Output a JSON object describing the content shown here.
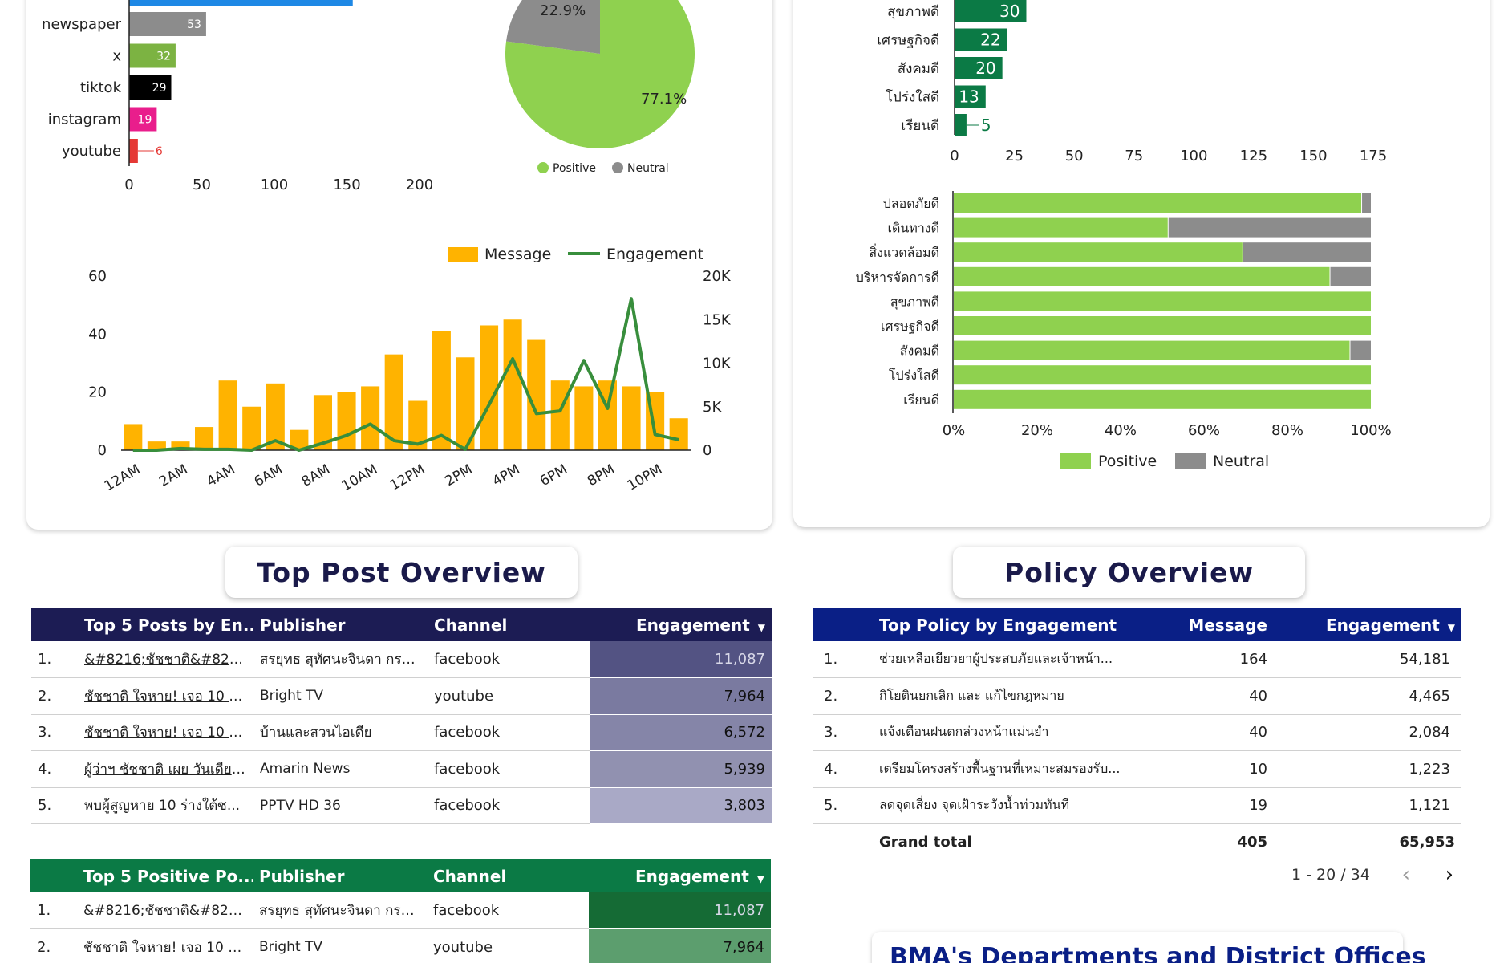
{
  "channel_chart": {
    "type": "bar",
    "categories": [
      "newspaper",
      "x",
      "tiktok",
      "instagram",
      "youtube"
    ],
    "values": [
      53,
      32,
      29,
      19,
      6
    ],
    "bar_colors": [
      "#8c8c8c",
      "#7cb342",
      "#000000",
      "#e91e8c",
      "#e53935"
    ],
    "value_label_colors": [
      "#ffffff",
      "#ffffff",
      "#ffffff",
      "#ffffff",
      "#e53935"
    ],
    "top_partial_bar_color": "#1e88e5",
    "xticks": [
      0,
      50,
      100,
      150,
      200
    ],
    "xlim": [
      0,
      200
    ]
  },
  "sentiment_pie": {
    "type": "pie",
    "slices": [
      {
        "name": "Positive",
        "value": 77.1,
        "label": "77.1%",
        "color": "#8fd14f"
      },
      {
        "name": "Neutral",
        "value": 22.9,
        "label": "22.9%",
        "color": "#8c8c8c"
      }
    ]
  },
  "hourly_chart": {
    "type": "bar",
    "legend": {
      "bar": "Message",
      "line": "Engagement"
    },
    "bar_color": "#ffb300",
    "line_color": "#388e3c",
    "messages": [
      9,
      3,
      3,
      8,
      24,
      15,
      23,
      7,
      19,
      20,
      22,
      33,
      17,
      41,
      32,
      43,
      45,
      38,
      24,
      22,
      24,
      22,
      20,
      11
    ],
    "engagement": [
      0,
      0,
      200,
      100,
      100,
      0,
      1100,
      0,
      800,
      1700,
      3000,
      1100,
      700,
      1700,
      100,
      5200,
      10500,
      4200,
      4500,
      10300,
      4800,
      17400,
      1800,
      1200
    ],
    "x_tick_labels": [
      "12AM",
      "2AM",
      "4AM",
      "6AM",
      "8AM",
      "10AM",
      "12PM",
      "2PM",
      "4PM",
      "6PM",
      "8PM",
      "10PM"
    ],
    "left_ticks": [
      "0",
      "20",
      "40",
      "60"
    ],
    "right_ticks": [
      "0",
      "5K",
      "10K",
      "15K",
      "20K"
    ],
    "left_max": 60,
    "right_max": 20000
  },
  "policy_bar_chart": {
    "type": "bar",
    "categories": [
      "สุขภาพดี",
      "เศรษฐกิจดี",
      "สังคมดี",
      "โปร่งใสดี",
      "เรียนดี"
    ],
    "values": [
      30,
      22,
      20,
      13,
      5
    ],
    "bar_color": "#0b7a45",
    "xticks": [
      "0",
      "25",
      "50",
      "75",
      "100",
      "125",
      "150",
      "175"
    ],
    "xlim": [
      0,
      175
    ]
  },
  "policy_stacked_chart": {
    "type": "bar",
    "categories": [
      "ปลอดภัยดี",
      "เดินทางดี",
      "สิ่งแวดล้อมดี",
      "บริหารจัดการดี",
      "สุขภาพดี",
      "เศรษฐกิจดี",
      "สังคมดี",
      "โปร่งใสดี",
      "เรียนดี"
    ],
    "positive_pct": [
      97.7,
      51.3,
      69.2,
      90.1,
      100,
      100,
      94.9,
      100,
      100
    ],
    "xticks": [
      "0%",
      "20%",
      "40%",
      "60%",
      "80%",
      "100%"
    ],
    "legend": [
      "Positive",
      "Neutral"
    ],
    "colors": {
      "positive": "#8fd14f",
      "neutral": "#8c8c8c"
    }
  },
  "top_post": {
    "title": "Top Post Overview",
    "headers": {
      "post": "Top 5 Posts by En...",
      "publisher": "Publisher",
      "channel": "Channel",
      "engagement": "Engagement"
    },
    "rows": [
      {
        "idx": "1.",
        "post": "&#8216;ชัชชาติ&#821...",
        "publisher": "สรยุทธ สุทัศนะจินดา กรร...",
        "channel": "facebook",
        "engagement": "11,087"
      },
      {
        "idx": "2.",
        "post": "ชัชชาติ ใจหาย! เจอ 10 ร่า...",
        "publisher": "Bright TV",
        "channel": "youtube",
        "engagement": "7,964"
      },
      {
        "idx": "3.",
        "post": "ชัชชาติ ใจหาย! เจอ 10 ร่า...",
        "publisher": "บ้านและสวนไอเดีย",
        "channel": "facebook",
        "engagement": "6,572"
      },
      {
        "idx": "4.",
        "post": "ผู้ว่าฯ ชัชชาติ เผย วันเดียว...",
        "publisher": "Amarin News",
        "channel": "facebook",
        "engagement": "5,939"
      },
      {
        "idx": "5.",
        "post": "พบผู้สูญหาย 10 ร่างใต้ซ...",
        "publisher": "PPTV HD 36",
        "channel": "facebook",
        "engagement": "3,803"
      }
    ],
    "heat_colors": [
      "#535383",
      "#7a7aa0",
      "#8585a8",
      "#9191b0",
      "#a9a9c6"
    ]
  },
  "top_positive": {
    "headers": {
      "post": "Top 5 Positive Po...",
      "publisher": "Publisher",
      "channel": "Channel",
      "engagement": "Engagement"
    },
    "rows": [
      {
        "idx": "1.",
        "post": "&#8216;ชัชชาติ&#821...",
        "publisher": "สรยุทธ สุทัศนะจินดา กรร...",
        "channel": "facebook",
        "engagement": "11,087"
      },
      {
        "idx": "2.",
        "post": "ชัชชาติ ใจหาย! เจอ 10 ร่า...",
        "publisher": "Bright TV",
        "channel": "youtube",
        "engagement": "7,964"
      }
    ],
    "heat_colors": [
      "#156b35",
      "#5c9e6e"
    ]
  },
  "policy": {
    "title": "Policy Overview",
    "headers": {
      "policy": "Top Policy by Engagement",
      "message": "Message",
      "engagement": "Engagement"
    },
    "rows": [
      {
        "idx": "1.",
        "policy": "ช่วยเหลือเยียวยาผู้ประสบภัยและเจ้าหน้า...",
        "message": "164",
        "engagement": "54,181"
      },
      {
        "idx": "2.",
        "policy": "กิโยตินยกเลิก และ แก้ไขกฎหมาย",
        "message": "40",
        "engagement": "4,465"
      },
      {
        "idx": "3.",
        "policy": "แจ้งเตือนฝนตกล่วงหน้าแม่นยำ",
        "message": "40",
        "engagement": "2,084"
      },
      {
        "idx": "4.",
        "policy": "เตรียมโครงสร้างพื้นฐานที่เหมาะสมรองรับ...",
        "message": "10",
        "engagement": "1,223"
      },
      {
        "idx": "5.",
        "policy": "ลดจุดเสี่ยง จุดเฝ้าระวังน้ำท่วมทันที",
        "message": "19",
        "engagement": "1,121"
      }
    ],
    "total": {
      "label": "Grand total",
      "message": "405",
      "engagement": "65,953"
    },
    "pager": "1 - 20 / 34"
  },
  "bma_title": "BMA's Departments and District Offices"
}
